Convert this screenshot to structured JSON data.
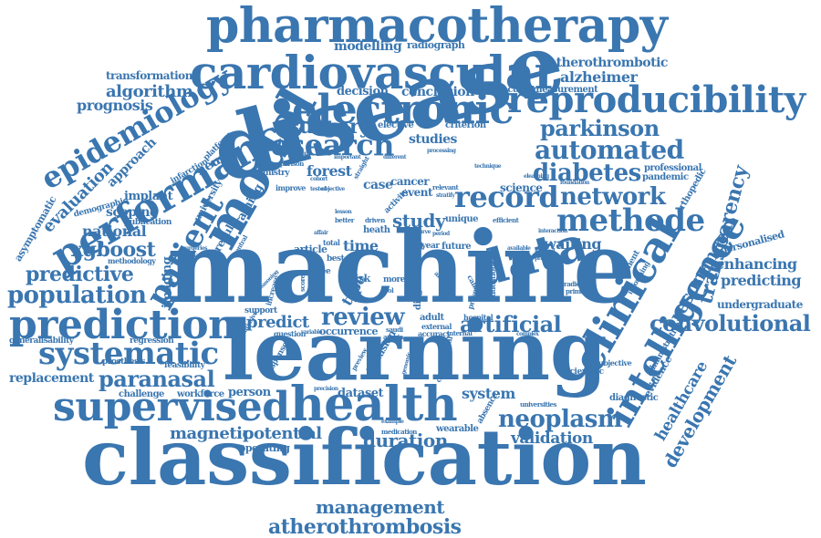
{
  "accent_color": "#3a76b0",
  "words": {
    "pharmacotherapy": "pharmacotherapy",
    "cardiovascular": "cardiovascular",
    "electronic": "electronic",
    "reproducibility": "reproducibility",
    "model": "model",
    "performance": "performance",
    "epidemiology": "epidemiology",
    "disease": "disease",
    "machine": "machine",
    "learning": "learning",
    "classification": "classification",
    "health": "health",
    "supervised": "supervised",
    "prediction": "prediction",
    "systematic": "systematic",
    "population": "population",
    "predictive": "predictive",
    "research": "research",
    "surgery": "surgery",
    "parkinson": "parkinson",
    "automated": "automated",
    "diabetes": "diabetes",
    "data": "data",
    "record": "record",
    "network": "network",
    "methode": "methode",
    "intelligence": "intelligence",
    "clinical": "clinical",
    "convolutional": "convolutional",
    "artificial": "artificial",
    "neoplasm": "neoplasm",
    "development": "development",
    "transparency": "transparency",
    "resonance": "resonance",
    "management": "management",
    "atherothrombosis": "atherothrombosis",
    "review": "review",
    "patient": "patient",
    "paranasal": "paranasal",
    "duration": "duration",
    "validation": "validation",
    "magnetic": "magnetic",
    "potential": "potential",
    "dataset": "dataset",
    "system": "system",
    "predict": "predict",
    "study": "study",
    "time": "time",
    "xgboost": "xgboost",
    "national": "national",
    "algorithm": "algorithm",
    "prognosis": "prognosis",
    "transformation": "transformation",
    "modelling": "modelling",
    "radiograph": "radiograph",
    "atherothrombotic": "atherothrombotic",
    "alzheimer": "alzheimer",
    "decision": "decision",
    "conclusion": "conclusion",
    "detection": "detection",
    "measurement": "measurement",
    "studies": "studies",
    "evaluation": "evaluation",
    "approach": "approach",
    "asymptomatic": "asymptomatic",
    "scoping": "scoping",
    "implant": "implant",
    "demographic": "demographic",
    "publication": "publication",
    "methodology": "methodology",
    "neural": "neural",
    "training": "training",
    "forest": "forest",
    "case": "case",
    "cancer": "cancer",
    "event": "event",
    "science": "science",
    "waiting": "waiting",
    "enhancing": "enhancing",
    "predicting": "predicting",
    "personalised": "personalised",
    "undergraduate": "undergraduate",
    "orthopedic": "orthopedic",
    "healthcare": "healthcare",
    "evidence": "evidence",
    "diagnostic": "diagnostic",
    "scientific": "scientific",
    "person": "person",
    "challenge": "challenge",
    "workforce": "workforce",
    "prosthesis": "prosthesis",
    "replacement": "replacement",
    "generalisability": "generalisability",
    "regression": "regression",
    "feasibility": "feasibility",
    "operating": "operating",
    "wearable": "wearable",
    "occurrence": "occurrence",
    "support": "support",
    "imaging": "imaging",
    "result": "result",
    "article": "article",
    "best": "best",
    "knee": "knee",
    "type": "type",
    "risk": "risk",
    "hospital": "hospital",
    "adult": "adult",
    "inclusion": "inclusion",
    "accuracy": "accuracy",
    "professional": "professional",
    "pandemic": "pandemic",
    "elective": "elective",
    "criterion": "criterion",
    "infarction": "infarction",
    "platform": "platform",
    "university": "university",
    "ministry": "ministry",
    "comparison": "comparison",
    "improve": "improve",
    "unique": "unique",
    "future": "future",
    "year": "year",
    "heath": "heath",
    "total": "total",
    "fact": "fact",
    "subjective": "subjective",
    "radiology": "radiology",
    "primary": "primary",
    "segment": "segment",
    "informing": "informing",
    "administrative": "administrative",
    "absence": "absence",
    "universities": "universities",
    "medication": "medication",
    "question": "question",
    "diagnosis": "diagnosis",
    "education": "education",
    "presence": "presence",
    "caliber": "caliber",
    "interaction": "interaction",
    "efficient": "efficient",
    "relevant": "relevant",
    "processing": "processing",
    "technique": "technique",
    "elearning": "elearning",
    "foundation": "foundation",
    "different": "different",
    "important": "important",
    "assessment": "assessment",
    "straight": "straight",
    "stratify": "stratify",
    "activity": "activity",
    "lesson": "lesson",
    "better": "better",
    "driven": "driven",
    "curve": "curve",
    "period": "period",
    "internal": "internal",
    "external": "external",
    "conventional": "conventional",
    "response": "response",
    "preview": "preview",
    "arabia": "arabia",
    "saudi": "saudi",
    "increase": "increase",
    "reasoning": "reasoning",
    "initiative": "initiative",
    "central": "central",
    "surgeries": "surgeries",
    "stomach": "stomach",
    "nutrition": "nutrition",
    "cohort": "cohort",
    "objective": "objective",
    "tested": "tested",
    "more": "more",
    "tool": "tool",
    "complex": "complex",
    "practice": "practice",
    "available": "available",
    "learned": "learned",
    "several": "several",
    "feasible": "feasible",
    "affair": "affair",
    "variable": "variable",
    "example": "example",
    "precision": "precision",
    "genomic": "genomic",
    "higher": "higher",
    "linear": "linear",
    "score": "score",
    "rate": "rate",
    "group": "group",
    "analysis": "analysis"
  }
}
